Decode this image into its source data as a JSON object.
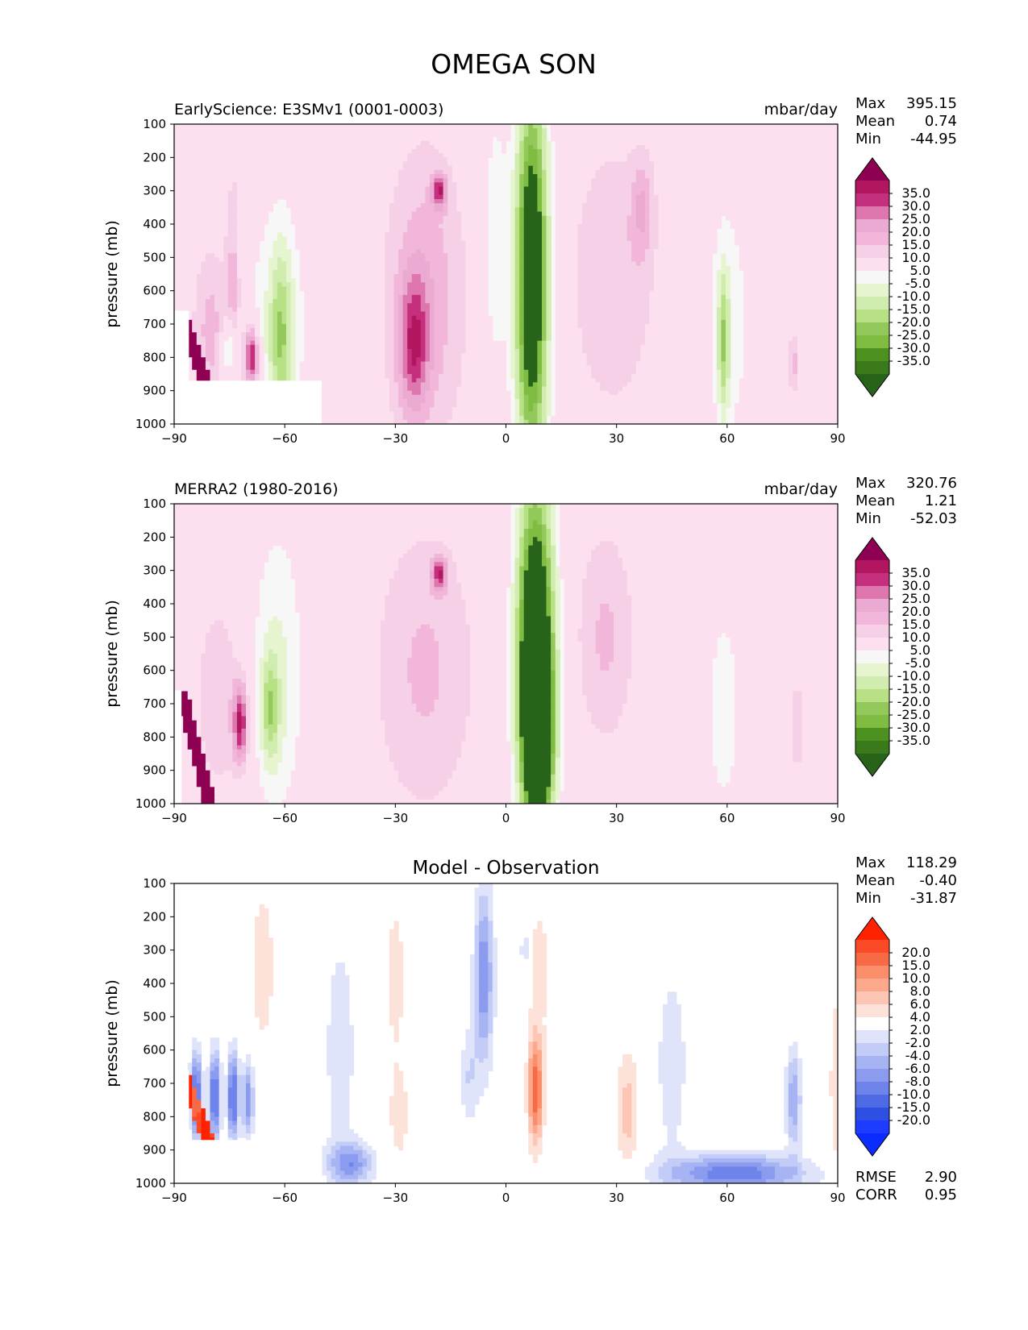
{
  "figure_title": "OMEGA SON",
  "chart_data": [
    {
      "type": "contour",
      "left_title": "EarlyScience: E3SMv1 (0001-0003)",
      "units": "mbar/day",
      "center_title": "",
      "xlabel": "",
      "ylabel": "pressure (mb)",
      "xlim": [
        -90,
        90
      ],
      "ylim": [
        1000,
        100
      ],
      "xticks": [
        "−90",
        "−60",
        "−30",
        "0",
        "30",
        "60",
        "90"
      ],
      "yticks": [
        "100",
        "200",
        "300",
        "400",
        "500",
        "600",
        "700",
        "800",
        "900",
        "1000"
      ],
      "stats": {
        "Max": "395.15",
        "Mean": "0.74",
        "Min": "-44.95"
      },
      "colorbar": {
        "levels": [
          "35.0",
          "30.0",
          "25.0",
          "20.0",
          "15.0",
          "10.0",
          "5.0",
          "-5.0",
          "-10.0",
          "-15.0",
          "-20.0",
          "-25.0",
          "-30.0",
          "-35.0"
        ],
        "colors": [
          "#8e0152",
          "#b2165e",
          "#c5307e",
          "#de77ae",
          "#ebaad2",
          "#f1b6da",
          "#f6d0e6",
          "#fde0ef",
          "#f7f7f7",
          "#e6f5d0",
          "#d0ecae",
          "#b8e186",
          "#93c85a",
          "#7fbc41",
          "#4d9221",
          "#3a7a1a",
          "#276419"
        ]
      },
      "field": {
        "background": "#f7f7f7",
        "missing_color": "#ffffff"
      },
      "blobs": [
        {
          "lon": -88,
          "lon2": -81,
          "p": 880,
          "p2": 660,
          "v": 40
        },
        {
          "lon": -80,
          "p": 720,
          "wl": 5,
          "wp": 250,
          "v": 12
        },
        {
          "lon": -74,
          "p": 650,
          "wl": 2,
          "wp": 420,
          "v": 12
        },
        {
          "lon": -75,
          "p": 780,
          "wl": 2,
          "wp": 90,
          "v": -22
        },
        {
          "lon": -69,
          "p": 800,
          "wl": 2,
          "wp": 90,
          "v": 35
        },
        {
          "lon": -62,
          "p": 700,
          "wl": 8,
          "wp": 380,
          "v": -10
        },
        {
          "lon": -61,
          "p": 740,
          "wl": 3,
          "wp": 260,
          "v": -17
        },
        {
          "lon": -22,
          "p": 620,
          "wl": 11,
          "wp": 460,
          "v": 14
        },
        {
          "lon": -25,
          "p": 760,
          "wl": 4,
          "wp": 200,
          "v": 21
        },
        {
          "lon": -18,
          "p": 300,
          "wl": 2,
          "wp": 50,
          "v": 25
        },
        {
          "lon": -3,
          "p": 450,
          "wl": 3,
          "wp": 380,
          "v": -10
        },
        {
          "lon": 7,
          "p": 560,
          "wl": 4.5,
          "wp": 560,
          "v": -50
        },
        {
          "lon": 29,
          "p": 560,
          "wl": 12,
          "wp": 420,
          "v": 10
        },
        {
          "lon": 37,
          "p": 350,
          "wl": 3,
          "wp": 150,
          "v": 12
        },
        {
          "lon": 60,
          "p": 700,
          "wl": 6,
          "wp": 380,
          "v": -9
        },
        {
          "lon": 59,
          "p": 760,
          "wl": 1.5,
          "wp": 220,
          "v": -18
        },
        {
          "lon": 78,
          "p": 820,
          "wl": 1.5,
          "wp": 90,
          "v": 12
        }
      ],
      "missing_regions": [
        {
          "lon": [
            -90,
            -50
          ],
          "p": [
            870,
            1000
          ]
        },
        {
          "lon": [
            -90,
            -86
          ],
          "p": [
            660,
            1000
          ]
        }
      ]
    },
    {
      "type": "contour",
      "left_title": "MERRA2 (1980-2016)",
      "units": "mbar/day",
      "center_title": "",
      "xlabel": "",
      "ylabel": "pressure (mb)",
      "xlim": [
        -90,
        90
      ],
      "ylim": [
        1000,
        100
      ],
      "xticks": [
        "−90",
        "−60",
        "−30",
        "0",
        "30",
        "60",
        "90"
      ],
      "yticks": [
        "100",
        "200",
        "300",
        "400",
        "500",
        "600",
        "700",
        "800",
        "900",
        "1000"
      ],
      "stats": {
        "Max": "320.76",
        "Mean": "1.21",
        "Min": "-52.03"
      },
      "colorbar": {
        "levels": [
          "35.0",
          "30.0",
          "25.0",
          "20.0",
          "15.0",
          "10.0",
          "5.0",
          "-5.0",
          "-10.0",
          "-15.0",
          "-20.0",
          "-25.0",
          "-30.0",
          "-35.0"
        ],
        "colors": [
          "#8e0152",
          "#b2165e",
          "#c5307e",
          "#de77ae",
          "#ebaad2",
          "#f1b6da",
          "#f6d0e6",
          "#fde0ef",
          "#f7f7f7",
          "#e6f5d0",
          "#d0ecae",
          "#b8e186",
          "#93c85a",
          "#7fbc41",
          "#4d9221",
          "#3a7a1a",
          "#276419"
        ]
      },
      "field": {
        "background": "#f7f7f7",
        "missing_color": "#ffffff"
      },
      "blobs": [
        {
          "lon": -88,
          "lon2": -80,
          "p": 1000,
          "p2": 660,
          "v": 40
        },
        {
          "lon": -78,
          "p": 680,
          "wl": 6,
          "wp": 280,
          "v": 10
        },
        {
          "lon": -72,
          "p": 760,
          "wl": 2,
          "wp": 120,
          "v": 30
        },
        {
          "lon": -62,
          "p": 610,
          "wl": 7,
          "wp": 440,
          "v": -11
        },
        {
          "lon": -64,
          "p": 720,
          "wl": 2.5,
          "wp": 160,
          "v": -17
        },
        {
          "lon": -22,
          "p": 600,
          "wl": 14,
          "wp": 440,
          "v": 11
        },
        {
          "lon": -18,
          "p": 310,
          "wl": 2,
          "wp": 50,
          "v": 25
        },
        {
          "lon": 8,
          "p": 580,
          "wl": 5,
          "wp": 520,
          "v": -60
        },
        {
          "lon": 9,
          "p": 780,
          "wl": 3.5,
          "wp": 220,
          "v": -40
        },
        {
          "lon": 27,
          "p": 500,
          "wl": 8,
          "wp": 330,
          "v": 11
        },
        {
          "lon": 59,
          "p": 720,
          "wl": 5,
          "wp": 340,
          "v": -8
        },
        {
          "lon": 79,
          "p": 770,
          "wl": 3,
          "wp": 190,
          "v": 7
        }
      ],
      "missing_regions": [
        {
          "lon": [
            -90,
            -88
          ],
          "p": [
            660,
            1000
          ]
        }
      ]
    },
    {
      "type": "contour",
      "left_title": "",
      "units": "",
      "center_title": "Model - Observation",
      "xlabel": "",
      "ylabel": "pressure (mb)",
      "xlim": [
        -90,
        90
      ],
      "ylim": [
        1000,
        100
      ],
      "xticks": [
        "−90",
        "−60",
        "−30",
        "0",
        "30",
        "60",
        "90"
      ],
      "yticks": [
        "100",
        "200",
        "300",
        "400",
        "500",
        "600",
        "700",
        "800",
        "900",
        "1000"
      ],
      "stats": {
        "Max": "118.29",
        "Mean": "-0.40",
        "Min": "-31.87"
      },
      "extra_stats": {
        "RMSE": "2.90",
        "CORR": "0.95"
      },
      "colorbar": {
        "levels": [
          "20.0",
          "15.0",
          "10.0",
          "8.0",
          "6.0",
          "4.0",
          "2.0",
          "-2.0",
          "-4.0",
          "-6.0",
          "-8.0",
          "-10.0",
          "-15.0",
          "-20.0"
        ],
        "colors": [
          "#ff2200",
          "#fb4a27",
          "#f86a45",
          "#fa8d6a",
          "#fba88b",
          "#fdc5b4",
          "#fde2d9",
          "#ffffff",
          "#dfe4fb",
          "#c3ccf7",
          "#a7b4f3",
          "#8b9cee",
          "#6e84ea",
          "#4f6ae5",
          "#2e50e2",
          "#1e3cff",
          "#0a2cff"
        ]
      },
      "field": {
        "background": "#ffffff",
        "missing_color": "#ffffff"
      },
      "blobs": [
        {
          "lon": -88,
          "lon2": -80,
          "p": 880,
          "p2": 660,
          "v": 25
        },
        {
          "lon": -84,
          "p": 740,
          "wl": 1.5,
          "wp": 130,
          "v": -14
        },
        {
          "lon": -79,
          "p": 740,
          "wl": 1.5,
          "wp": 130,
          "v": -14
        },
        {
          "lon": -74,
          "p": 740,
          "wl": 1.5,
          "wp": 130,
          "v": -14
        },
        {
          "lon": -70,
          "p": 750,
          "wl": 1.5,
          "wp": 110,
          "v": -10
        },
        {
          "lon": -66,
          "p": 350,
          "wl": 3,
          "wp": 220,
          "v": 4
        },
        {
          "lon": -45,
          "p": 600,
          "wl": 5,
          "wp": 420,
          "v": -3
        },
        {
          "lon": -42,
          "p": 940,
          "wl": 6,
          "wp": 60,
          "v": -9
        },
        {
          "lon": -30,
          "p": 380,
          "wl": 3,
          "wp": 260,
          "v": 3
        },
        {
          "lon": -29,
          "p": 800,
          "wl": 3,
          "wp": 150,
          "v": 3
        },
        {
          "lon": -6,
          "p": 380,
          "wl": 2.5,
          "wp": 260,
          "v": -10
        },
        {
          "lon": -10,
          "p": 680,
          "wl": 2.5,
          "wp": 150,
          "v": -4
        },
        {
          "lon": 8,
          "p": 720,
          "wl": 2,
          "wp": 160,
          "v": 12
        },
        {
          "lon": 9,
          "p": 350,
          "wl": 3,
          "wp": 220,
          "v": 3
        },
        {
          "lon": 5,
          "p": 300,
          "wl": 1,
          "wp": 80,
          "v": -4
        },
        {
          "lon": 33,
          "p": 780,
          "wl": 3,
          "wp": 180,
          "v": 5
        },
        {
          "lon": 45,
          "p": 640,
          "wl": 5,
          "wp": 350,
          "v": -3
        },
        {
          "lon": 62,
          "p": 970,
          "wl": 18,
          "wp": 55,
          "v": -12
        },
        {
          "lon": 78,
          "p": 750,
          "wl": 2,
          "wp": 150,
          "v": -8
        },
        {
          "lon": 89,
          "p": 700,
          "wl": 1,
          "wp": 300,
          "v": 4
        }
      ],
      "missing_regions": [
        {
          "lon": [
            -90,
            -50
          ],
          "p": [
            870,
            1000
          ]
        },
        {
          "lon": [
            -90,
            -86
          ],
          "p": [
            660,
            1000
          ]
        }
      ]
    }
  ]
}
